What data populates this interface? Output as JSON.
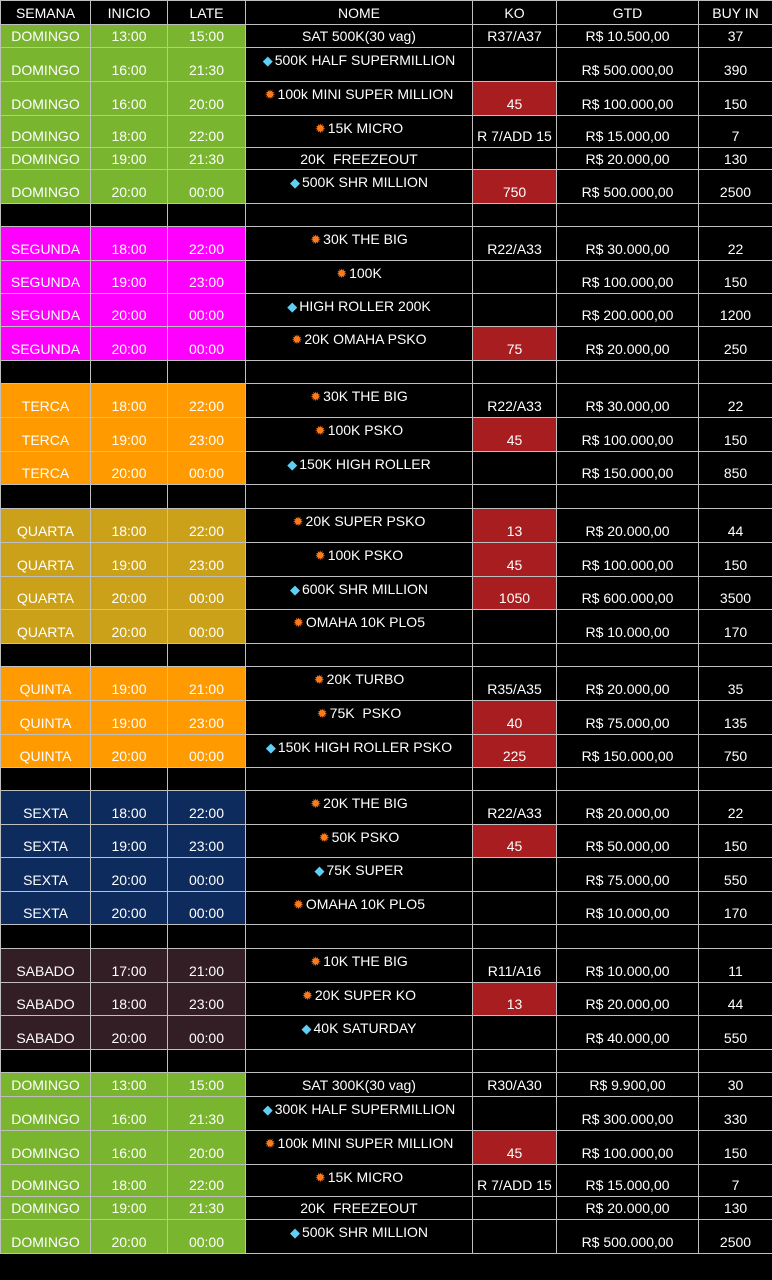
{
  "headers": [
    "SEMANA",
    "INICIO",
    "LATE",
    "NOME",
    "KO",
    "GTD",
    "BUY IN"
  ],
  "colors": {
    "DOMINGO": "#7ab530",
    "SEGUNDA": "#ff00ff",
    "TERCA": "#ff9a00",
    "QUARTA": "#cca11a",
    "QUINTA": "#ff9a00",
    "SEXTA": "#0e2b5e",
    "SABADO": "#341e26",
    "ko_red": "#a81d1f"
  },
  "groups": [
    {
      "rows": [
        {
          "day": "DOMINGO",
          "inicio": "13:00",
          "late": "15:00",
          "icon": "",
          "nome": "SAT 500K(30 vag)",
          "ko": "R37/A37",
          "ko_red": false,
          "gtd": "R$ 10.500,00",
          "buyin": "37",
          "h": 23
        },
        {
          "day": "DOMINGO",
          "inicio": "16:00",
          "late": "21:30",
          "icon": "diamond",
          "nome": "500K HALF SUPERMILLION",
          "ko": "",
          "ko_red": false,
          "gtd": "R$ 500.000,00",
          "buyin": "390",
          "h": 34
        },
        {
          "day": "DOMINGO",
          "inicio": "16:00",
          "late": "20:00",
          "icon": "boom",
          "nome": "100k MINI SUPER MILLION",
          "ko": "45",
          "ko_red": true,
          "gtd": "R$ 100.000,00",
          "buyin": "150",
          "h": 34
        },
        {
          "day": "DOMINGO",
          "inicio": "18:00",
          "late": "22:00",
          "icon": "boom",
          "nome": "15K MICRO",
          "ko": "R 7/ADD 15",
          "ko_red": false,
          "gtd": "R$ 15.000,00",
          "buyin": "7",
          "h": 32
        },
        {
          "day": "DOMINGO",
          "inicio": "19:00",
          "late": "21:30",
          "icon": "",
          "nome": "20K  FREEZEOUT",
          "ko": "",
          "ko_red": false,
          "gtd": "R$ 20.000,00",
          "buyin": "130",
          "h": 22
        },
        {
          "day": "DOMINGO",
          "inicio": "20:00",
          "late": "00:00",
          "icon": "diamond",
          "nome": "500K SHR MILLION",
          "ko": "750",
          "ko_red": true,
          "gtd": "R$ 500.000,00",
          "buyin": "2500",
          "h": 34
        }
      ],
      "gap": 23
    },
    {
      "rows": [
        {
          "day": "SEGUNDA",
          "inicio": "18:00",
          "late": "22:00",
          "icon": "boom",
          "nome": "30K THE BIG",
          "ko": "R22/A33",
          "ko_red": false,
          "gtd": "R$ 30.000,00",
          "buyin": "22",
          "h": 34
        },
        {
          "day": "SEGUNDA",
          "inicio": "19:00",
          "late": "23:00",
          "icon": "boom",
          "nome": "100K",
          "ko": "",
          "ko_red": false,
          "gtd": "R$ 100.000,00",
          "buyin": "150",
          "h": 33
        },
        {
          "day": "SEGUNDA",
          "inicio": "20:00",
          "late": "00:00",
          "icon": "diamond",
          "nome": "HIGH ROLLER 200K",
          "ko": "",
          "ko_red": false,
          "gtd": "R$ 200.000,00",
          "buyin": "1200",
          "h": 33
        },
        {
          "day": "SEGUNDA",
          "inicio": "20:00",
          "late": "00:00",
          "icon": "boom",
          "nome": "20K OMAHA PSKO",
          "ko": "75",
          "ko_red": true,
          "gtd": "R$ 20.000,00",
          "buyin": "250",
          "h": 34
        }
      ],
      "gap": 23
    },
    {
      "rows": [
        {
          "day": "TERCA",
          "inicio": "18:00",
          "late": "22:00",
          "icon": "boom",
          "nome": "30K THE BIG",
          "ko": "R22/A33",
          "ko_red": false,
          "gtd": "R$ 30.000,00",
          "buyin": "22",
          "h": 34
        },
        {
          "day": "TERCA",
          "inicio": "19:00",
          "late": "23:00",
          "icon": "boom",
          "nome": "100K PSKO",
          "ko": "45",
          "ko_red": true,
          "gtd": "R$ 100.000,00",
          "buyin": "150",
          "h": 34
        },
        {
          "day": "TERCA",
          "inicio": "20:00",
          "late": "00:00",
          "icon": "diamond",
          "nome": "150K HIGH ROLLER",
          "ko": "",
          "ko_red": false,
          "gtd": "R$ 150.000,00",
          "buyin": "850",
          "h": 33
        }
      ],
      "gap": 24
    },
    {
      "rows": [
        {
          "day": "QUARTA",
          "inicio": "18:00",
          "late": "22:00",
          "icon": "boom",
          "nome": "20K SUPER PSKO",
          "ko": "13",
          "ko_red": true,
          "gtd": "R$ 20.000,00",
          "buyin": "44",
          "h": 34
        },
        {
          "day": "QUARTA",
          "inicio": "19:00",
          "late": "23:00",
          "icon": "boom",
          "nome": "100K PSKO",
          "ko": "45",
          "ko_red": true,
          "gtd": "R$ 100.000,00",
          "buyin": "150",
          "h": 34
        },
        {
          "day": "QUARTA",
          "inicio": "20:00",
          "late": "00:00",
          "icon": "diamond",
          "nome": "600K SHR MILLION",
          "ko": "1050",
          "ko_red": true,
          "gtd": "R$ 600.000,00",
          "buyin": "3500",
          "h": 33
        },
        {
          "day": "QUARTA",
          "inicio": "20:00",
          "late": "00:00",
          "icon": "boom",
          "nome": "OMAHA 10K PLO5",
          "ko": "",
          "ko_red": false,
          "gtd": "R$ 10.000,00",
          "buyin": "170",
          "h": 34
        }
      ],
      "gap": 23
    },
    {
      "rows": [
        {
          "day": "QUINTA",
          "inicio": "19:00",
          "late": "21:00",
          "icon": "boom",
          "nome": "20K TURBO",
          "ko": "R35/A35",
          "ko_red": false,
          "gtd": "R$ 20.000,00",
          "buyin": "35",
          "h": 34
        },
        {
          "day": "QUINTA",
          "inicio": "19:00",
          "late": "23:00",
          "icon": "boom",
          "nome": "75K  PSKO",
          "ko": "40",
          "ko_red": true,
          "gtd": "R$ 75.000,00",
          "buyin": "135",
          "h": 34
        },
        {
          "day": "QUINTA",
          "inicio": "20:00",
          "late": "00:00",
          "icon": "diamond",
          "nome": "150K HIGH ROLLER PSKO",
          "ko": "225",
          "ko_red": true,
          "gtd": "R$ 150.000,00",
          "buyin": "750",
          "h": 33
        }
      ],
      "gap": 23
    },
    {
      "rows": [
        {
          "day": "SEXTA",
          "inicio": "18:00",
          "late": "22:00",
          "icon": "boom",
          "nome": "20K THE BIG",
          "ko": "R22/A33",
          "ko_red": false,
          "gtd": "R$ 20.000,00",
          "buyin": "22",
          "h": 34
        },
        {
          "day": "SEXTA",
          "inicio": "19:00",
          "late": "23:00",
          "icon": "boom",
          "nome": "50K PSKO",
          "ko": "45",
          "ko_red": true,
          "gtd": "R$ 50.000,00",
          "buyin": "150",
          "h": 33
        },
        {
          "day": "SEXTA",
          "inicio": "20:00",
          "late": "00:00",
          "icon": "diamond",
          "nome": "75K SUPER",
          "ko": "",
          "ko_red": false,
          "gtd": "R$ 75.000,00",
          "buyin": "550",
          "h": 34
        },
        {
          "day": "SEXTA",
          "inicio": "20:00",
          "late": "00:00",
          "icon": "boom",
          "nome": "OMAHA 10K PLO5",
          "ko": "",
          "ko_red": false,
          "gtd": "R$ 10.000,00",
          "buyin": "170",
          "h": 33
        }
      ],
      "gap": 24
    },
    {
      "rows": [
        {
          "day": "SABADO",
          "inicio": "17:00",
          "late": "21:00",
          "icon": "boom",
          "nome": "10K THE BIG",
          "ko": "R11/A16",
          "ko_red": false,
          "gtd": "R$ 10.000,00",
          "buyin": "11",
          "h": 34
        },
        {
          "day": "SABADO",
          "inicio": "18:00",
          "late": "23:00",
          "icon": "boom",
          "nome": "20K SUPER KO",
          "ko": "13",
          "ko_red": true,
          "gtd": "R$ 20.000,00",
          "buyin": "44",
          "h": 33
        },
        {
          "day": "SABADO",
          "inicio": "20:00",
          "late": "00:00",
          "icon": "diamond",
          "nome": "40K SATURDAY",
          "ko": "",
          "ko_red": false,
          "gtd": "R$ 40.000,00",
          "buyin": "550",
          "h": 34
        }
      ],
      "gap": 23
    },
    {
      "rows": [
        {
          "day": "DOMINGO",
          "inicio": "13:00",
          "late": "15:00",
          "icon": "",
          "nome": "SAT 300K(30 vag)",
          "ko": "R30/A30",
          "ko_red": false,
          "gtd": "R$ 9.900,00",
          "buyin": "30",
          "h": 24
        },
        {
          "day": "DOMINGO",
          "inicio": "16:00",
          "late": "21:30",
          "icon": "diamond",
          "nome": "300K HALF SUPERMILLION",
          "ko": "",
          "ko_red": false,
          "gtd": "R$ 300.000,00",
          "buyin": "330",
          "h": 34
        },
        {
          "day": "DOMINGO",
          "inicio": "16:00",
          "late": "20:00",
          "icon": "boom",
          "nome": "100k MINI SUPER MILLION",
          "ko": "45",
          "ko_red": true,
          "gtd": "R$ 100.000,00",
          "buyin": "150",
          "h": 34
        },
        {
          "day": "DOMINGO",
          "inicio": "18:00",
          "late": "22:00",
          "icon": "boom",
          "nome": "15K MICRO",
          "ko": "R 7/ADD 15",
          "ko_red": false,
          "gtd": "R$ 15.000,00",
          "buyin": "7",
          "h": 32
        },
        {
          "day": "DOMINGO",
          "inicio": "19:00",
          "late": "21:30",
          "icon": "",
          "nome": "20K  FREEZEOUT",
          "ko": "",
          "ko_red": false,
          "gtd": "R$ 20.000,00",
          "buyin": "130",
          "h": 23
        },
        {
          "day": "DOMINGO",
          "inicio": "20:00",
          "late": "00:00",
          "icon": "diamond",
          "nome": "500K SHR MILLION",
          "ko": "",
          "ko_red": false,
          "gtd": "R$ 500.000,00",
          "buyin": "2500",
          "h": 34
        }
      ],
      "gap": 0
    }
  ]
}
